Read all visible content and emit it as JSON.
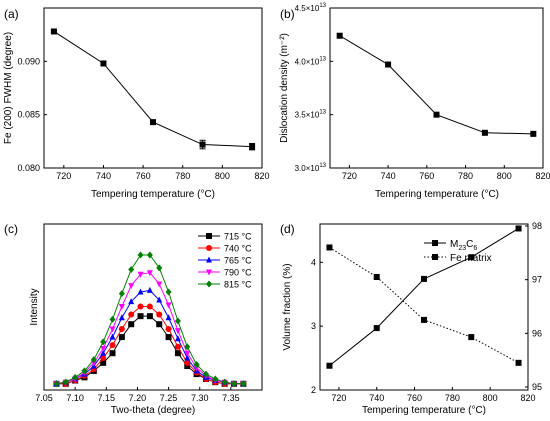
{
  "chart_data": [
    {
      "panel": "(a)",
      "type": "line",
      "title": "",
      "xlabel": "Tempering temperature (°C)",
      "ylabel": "Fe (200) FWHM (degree)",
      "xlim": [
        710,
        820
      ],
      "ylim": [
        0.08,
        0.095
      ],
      "x_ticks": [
        720,
        740,
        760,
        780,
        800,
        820
      ],
      "y_ticks": [
        0.08,
        0.085,
        0.09
      ],
      "y_tick_labels": [
        "0.080",
        "0.085",
        "0.090"
      ],
      "series": [
        {
          "x": [
            715,
            740,
            765,
            790,
            815
          ],
          "y": [
            0.0928,
            0.0898,
            0.0843,
            0.0822,
            0.082
          ],
          "yerr": [
            0.0001,
            0.0002,
            0.0001,
            0.0004,
            0.0003
          ],
          "marker": "square",
          "line": "solid",
          "color": "#000000"
        }
      ]
    },
    {
      "panel": "(b)",
      "type": "line",
      "title": "",
      "xlabel": "Tempering temperature (°C)",
      "ylabel": "Dislocation density (m⁻²)",
      "xlim": [
        710,
        820
      ],
      "ylim": [
        30000000000000.0,
        45000000000000.0
      ],
      "x_ticks": [
        720,
        740,
        760,
        780,
        800,
        820
      ],
      "y_ticks": [
        30000000000000.0,
        35000000000000.0,
        40000000000000.0,
        45000000000000.0
      ],
      "y_tick_mantissas": [
        "3.0×10",
        "3.5×10",
        "4.0×10",
        "4.5×10"
      ],
      "y_tick_exponent": "13",
      "series": [
        {
          "x": [
            715,
            740,
            765,
            790,
            815
          ],
          "y": [
            42400000000000.0,
            39700000000000.0,
            35000000000000.0,
            33300000000000.0,
            33200000000000.0
          ],
          "marker": "square",
          "line": "solid",
          "color": "#000000"
        }
      ]
    },
    {
      "panel": "(c)",
      "type": "line",
      "title": "",
      "xlabel": "Two-theta (degree)",
      "ylabel": "Intensity",
      "xlim": [
        7.05,
        7.4
      ],
      "ylim": [
        0,
        1
      ],
      "x_ticks": [
        7.05,
        7.1,
        7.15,
        7.2,
        7.25,
        7.3,
        7.35
      ],
      "x_tick_labels": [
        "7.05",
        "7.10",
        "7.15",
        "7.20",
        "7.25",
        "7.30",
        "7.35"
      ],
      "legend_position": "top-right",
      "x": [
        7.07,
        7.085,
        7.1,
        7.115,
        7.13,
        7.145,
        7.16,
        7.175,
        7.19,
        7.205,
        7.22,
        7.235,
        7.25,
        7.265,
        7.28,
        7.295,
        7.31,
        7.325,
        7.34,
        7.355,
        7.37
      ],
      "series": [
        {
          "name": "715 °C",
          "color": "#000000",
          "marker": "square",
          "values": [
            0.02,
            0.02,
            0.04,
            0.06,
            0.1,
            0.15,
            0.21,
            0.31,
            0.39,
            0.44,
            0.44,
            0.39,
            0.31,
            0.21,
            0.13,
            0.08,
            0.05,
            0.03,
            0.02,
            0.02,
            0.02
          ]
        },
        {
          "name": "740 °C",
          "color": "#ff0000",
          "marker": "circle",
          "values": [
            0.02,
            0.02,
            0.04,
            0.07,
            0.11,
            0.18,
            0.26,
            0.36,
            0.45,
            0.5,
            0.5,
            0.45,
            0.36,
            0.25,
            0.15,
            0.09,
            0.05,
            0.03,
            0.02,
            0.02,
            0.02
          ]
        },
        {
          "name": "765 °C",
          "color": "#0000ff",
          "marker": "triangle-up",
          "values": [
            0.02,
            0.03,
            0.05,
            0.08,
            0.13,
            0.21,
            0.31,
            0.43,
            0.53,
            0.59,
            0.6,
            0.54,
            0.43,
            0.3,
            0.18,
            0.1,
            0.06,
            0.04,
            0.03,
            0.02,
            0.02
          ]
        },
        {
          "name": "790 °C",
          "color": "#ff00ff",
          "marker": "triangle-down",
          "values": [
            0.02,
            0.03,
            0.05,
            0.09,
            0.15,
            0.24,
            0.36,
            0.5,
            0.63,
            0.7,
            0.71,
            0.64,
            0.51,
            0.35,
            0.21,
            0.12,
            0.07,
            0.04,
            0.03,
            0.02,
            0.02
          ]
        },
        {
          "name": "815 °C",
          "color": "#008000",
          "marker": "diamond",
          "values": [
            0.02,
            0.03,
            0.06,
            0.1,
            0.17,
            0.28,
            0.42,
            0.58,
            0.73,
            0.82,
            0.82,
            0.74,
            0.59,
            0.41,
            0.25,
            0.14,
            0.08,
            0.05,
            0.03,
            0.02,
            0.02
          ]
        }
      ]
    },
    {
      "panel": "(d)",
      "type": "line",
      "title": "",
      "xlabel": "Tempering temperature (°C)",
      "ylabel": "Volume fraction (%)",
      "xlim": [
        710,
        820
      ],
      "ylim": [
        2,
        4.6
      ],
      "y2lim": [
        95,
        98
      ],
      "x_ticks": [
        720,
        740,
        760,
        780,
        800,
        820
      ],
      "y_ticks": [
        2,
        3,
        4
      ],
      "y2_ticks": [
        95,
        96,
        97,
        98
      ],
      "legend_position": "top-right",
      "series": [
        {
          "name": "M23C6",
          "name_base": "M",
          "name_sub": "23",
          "name_mid": "C",
          "name_sub2": "6",
          "axis": "left",
          "line": "solid",
          "marker": "square",
          "color": "#000000",
          "x": [
            715,
            740,
            765,
            790,
            815
          ],
          "y": [
            2.38,
            2.97,
            3.74,
            4.08,
            4.53
          ]
        },
        {
          "name": "Fe matrix",
          "axis": "right",
          "line": "dotted",
          "marker": "square",
          "color": "#000000",
          "x": [
            715,
            740,
            765,
            790,
            815
          ],
          "y": [
            97.6,
            97.05,
            96.25,
            95.93,
            95.45
          ]
        }
      ]
    }
  ]
}
